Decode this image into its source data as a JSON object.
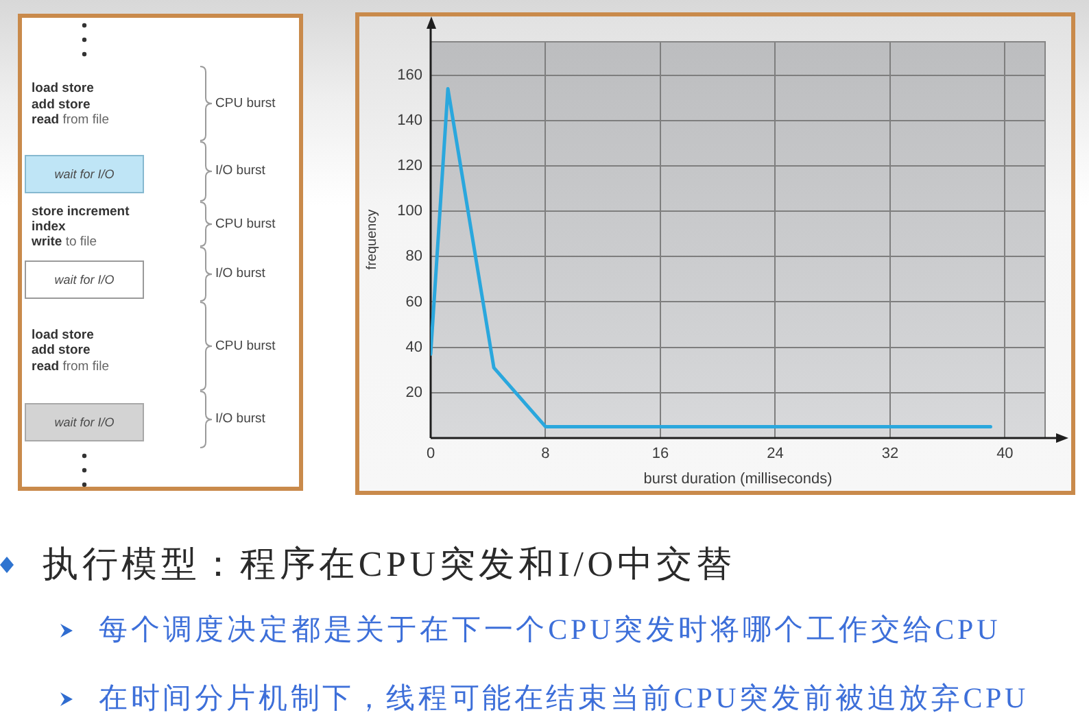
{
  "chart_data": [
    {
      "type": "other",
      "annotations": [
        "load store",
        "add store",
        "read from file",
        "wait for I/O",
        "store increment",
        "index",
        "write to file",
        "wait for I/O",
        "load store",
        "add store",
        "read from file",
        "wait for I/O",
        "CPU burst",
        "I/O burst",
        "CPU burst",
        "I/O burst",
        "CPU burst",
        "I/O burst"
      ]
    },
    {
      "type": "line",
      "xlabel": "burst duration (milliseconds)",
      "ylabel": "frequency",
      "x": [
        0,
        1.2,
        4.4,
        8,
        39
      ],
      "values": [
        37,
        154,
        31,
        5,
        5
      ],
      "color": "#2aa7dd",
      "xlim": [
        0,
        42.8
      ],
      "ylim": [
        0,
        175
      ],
      "xticks": [
        0,
        8,
        16,
        24,
        32,
        40
      ],
      "yticks": [
        20,
        40,
        60,
        80,
        100,
        120,
        140,
        160
      ],
      "grid": true
    },
    {
      "type": "other",
      "annotations": [
        "执行模型：程序在CPU突发和I/O中交替",
        "每个调度决定都是关于在下一个CPU突发时将哪个工作交给CPU",
        "在时间分片机制下，线程可能在结束当前CPU突发前被迫放弃CPU"
      ]
    }
  ]
}
